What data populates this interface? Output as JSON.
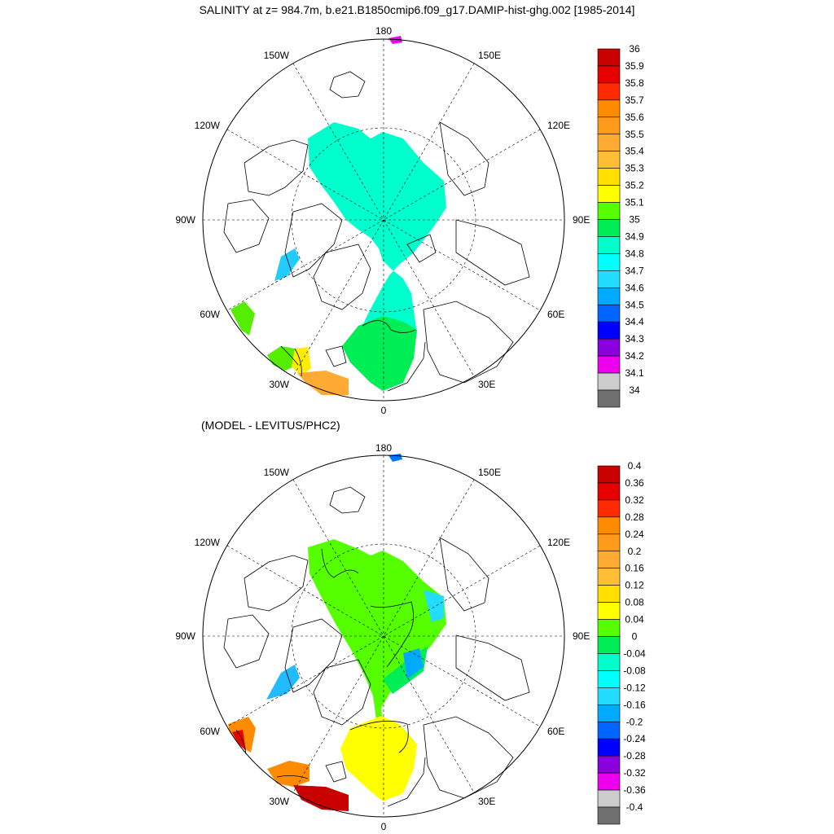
{
  "title": "SALINITY at z= 984.7m, b.e21.B1850cmip6.f09_g17.DAMIP-hist-ghg.002 [1985-2014]",
  "subtitle": "(MODEL - LEVITUS/PHC2)",
  "lon_labels": {
    "top": "180",
    "bottom": "0",
    "left": "90W",
    "right": "90E",
    "ul1": "150W",
    "ul2": "120W",
    "ur1": "150E",
    "ur2": "120E",
    "ll1": "60W",
    "ll2": "30W",
    "lr1": "60E",
    "lr2": "30E"
  },
  "top_panel": {
    "legend_labels": [
      "36",
      "35.9",
      "35.8",
      "35.7",
      "35.6",
      "35.5",
      "35.4",
      "35.3",
      "35.2",
      "35.1",
      "35",
      "34.9",
      "34.8",
      "34.7",
      "34.6",
      "34.5",
      "34.4",
      "34.3",
      "34.2",
      "34.1",
      "34"
    ],
    "legend_colors": [
      "#c80000",
      "#e60000",
      "#ff2a00",
      "#ff8c00",
      "#ff9a1a",
      "#ffaa33",
      "#ffbe33",
      "#ffe000",
      "#ffff00",
      "#55ff00",
      "#00ee55",
      "#00ffcc",
      "#00ffff",
      "#22ddff",
      "#00aaff",
      "#0066ff",
      "#0000ff",
      "#8800dd",
      "#ee00ee",
      "#cccccc",
      "#707070"
    ]
  },
  "bottom_panel": {
    "legend_labels": [
      "0.4",
      "0.36",
      "0.32",
      "0.28",
      "0.24",
      "0.2",
      "0.16",
      "0.12",
      "0.08",
      "0.04",
      "0",
      "-0.04",
      "-0.08",
      "-0.12",
      "-0.16",
      "-0.2",
      "-0.24",
      "-0.28",
      "-0.32",
      "-0.36",
      "-0.4"
    ],
    "legend_colors": [
      "#c80000",
      "#e60000",
      "#ff2a00",
      "#ff8c00",
      "#ff9a1a",
      "#ffaa33",
      "#ffbe33",
      "#ffe000",
      "#ffff00",
      "#55ff00",
      "#00ee55",
      "#00ffcc",
      "#00ffff",
      "#22ddff",
      "#00aaff",
      "#0066ff",
      "#0000ff",
      "#8800dd",
      "#ee00ee",
      "#cccccc",
      "#707070"
    ]
  }
}
